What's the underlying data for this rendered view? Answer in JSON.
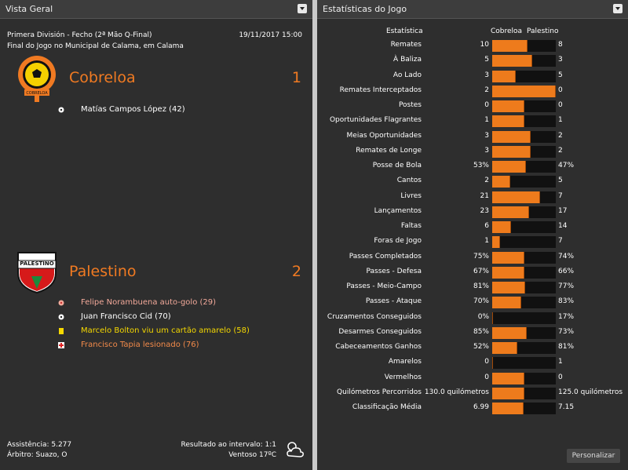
{
  "left_panel": {
    "title": "Vista Geral",
    "competition": "Primera División - Fecho (2ª Mão Q-Final)",
    "date": "19/11/2017 15:00",
    "venue": "Final do Jogo no Municipal de Calama, em Calama",
    "home": {
      "name": "Cobreloa",
      "crest_text": "COBRELOA",
      "score": 1,
      "events": [
        {
          "text": "Matías Campos López (42)",
          "kind": "goal",
          "color": "#ffffff"
        }
      ]
    },
    "away": {
      "name": "Palestino",
      "crest_text": "PALESTINO",
      "score": 2,
      "events": [
        {
          "text": "Felipe Norambuena auto-golo (29)",
          "kind": "own-goal",
          "color": "#f2a99a"
        },
        {
          "text": "Juan Francisco Cid (70)",
          "kind": "goal",
          "color": "#ffffff"
        },
        {
          "text": "Marcelo Bolton viu um cartão amarelo (58)",
          "kind": "yellow-card",
          "color": "#f5d800"
        },
        {
          "text": "Francisco Tapia lesionado (76)",
          "kind": "injury",
          "color": "#f28a4a"
        }
      ]
    },
    "footer": {
      "attendance": "Assistência: 5.277",
      "referee": "Árbitro: Suazo, O",
      "half_time": "Resultado ao intervalo: 1:1",
      "weather": "Ventoso 17ºC"
    }
  },
  "right_panel": {
    "title": "Estatísticas do Jogo",
    "columns": [
      "Estatística",
      "Cobreloa",
      "Palestino"
    ],
    "rows": [
      {
        "label": "Remates",
        "home": "10",
        "away": "8"
      },
      {
        "label": "À Baliza",
        "home": "5",
        "away": "3"
      },
      {
        "label": "Ao Lado",
        "home": "3",
        "away": "5"
      },
      {
        "label": "Remates Interceptados",
        "home": "2",
        "away": "0"
      },
      {
        "label": "Postes",
        "home": "0",
        "away": "0"
      },
      {
        "label": "Oportunidades Flagrantes",
        "home": "1",
        "away": "1"
      },
      {
        "label": "Meias Oportunidades",
        "home": "3",
        "away": "2"
      },
      {
        "label": "Remates de Longe",
        "home": "3",
        "away": "2"
      },
      {
        "label": "Posse de Bola",
        "home": "53%",
        "away": "47%"
      },
      {
        "label": "Cantos",
        "home": "2",
        "away": "5"
      },
      {
        "label": "Livres",
        "home": "21",
        "away": "7"
      },
      {
        "label": "Lançamentos",
        "home": "23",
        "away": "17"
      },
      {
        "label": "Faltas",
        "home": "6",
        "away": "14"
      },
      {
        "label": "Foras de Jogo",
        "home": "1",
        "away": "7"
      },
      {
        "label": "Passes Completados",
        "home": "75%",
        "away": "74%"
      },
      {
        "label": "Passes - Defesa",
        "home": "67%",
        "away": "66%"
      },
      {
        "label": "Passes - Meio-Campo",
        "home": "81%",
        "away": "77%"
      },
      {
        "label": "Passes - Ataque",
        "home": "70%",
        "away": "83%"
      },
      {
        "label": "Cruzamentos Conseguidos",
        "home": "0%",
        "away": "17%"
      },
      {
        "label": "Desarmes Conseguidos",
        "home": "85%",
        "away": "73%"
      },
      {
        "label": "Cabeceamentos Ganhos",
        "home": "52%",
        "away": "81%"
      },
      {
        "label": "Amarelos",
        "home": "0",
        "away": "1"
      },
      {
        "label": "Vermelhos",
        "home": "0",
        "away": "0"
      },
      {
        "label": "Quilómetros Percorridos",
        "home": "130.0 quilómetros",
        "away": "125.0 quilómetros"
      },
      {
        "label": "Classificação Média",
        "home": "6.99",
        "away": "7.15"
      }
    ],
    "button": "Personalizar"
  }
}
